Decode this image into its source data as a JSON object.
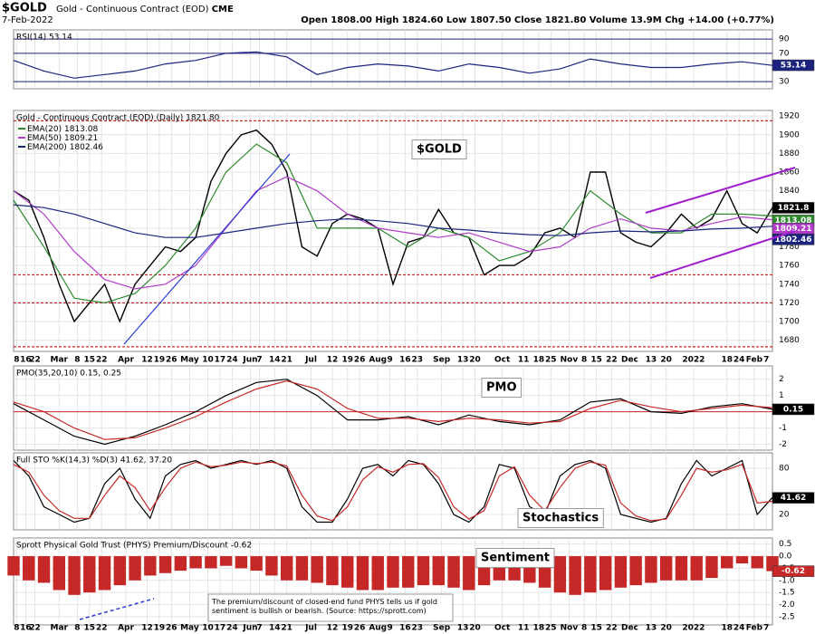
{
  "header": {
    "symbol": "$GOLD",
    "name": "Gold - Continuous Contract (EOD)",
    "exchange": "CME",
    "date": "7-Feb-2022",
    "quote": "Open 1808.00 High 1824.60 Low 1807.50 Close 1821.80 Volume 13.9M Chg +14.00 (+0.77%)"
  },
  "chart_data": [
    {
      "type": "line",
      "title": "RSI(14) 53.14",
      "ylim": [
        20,
        103
      ],
      "yticks": [
        30,
        70,
        90
      ],
      "series": [
        {
          "color": "#1a237e",
          "last": 53.14,
          "x": [
            0,
            10,
            20,
            30,
            40,
            50,
            60,
            70,
            80,
            90,
            100,
            110,
            120,
            130,
            140,
            150,
            160,
            170,
            180,
            190,
            200,
            210,
            220,
            230,
            240,
            250
          ],
          "values": [
            60,
            45,
            35,
            40,
            45,
            55,
            60,
            70,
            72,
            65,
            40,
            50,
            55,
            52,
            45,
            55,
            50,
            42,
            48,
            62,
            55,
            50,
            50,
            55,
            58,
            53
          ]
        }
      ]
    },
    {
      "type": "line",
      "title": "Gold - Continuous Contract (EOD) (Daily) 1821.80",
      "annotation": "$GOLD",
      "xlim": [
        0,
        250
      ],
      "xticks": [
        {
          "value": 1,
          "label": "8"
        },
        {
          "value": 4,
          "label": "16"
        },
        {
          "value": 7,
          "label": "22"
        },
        {
          "value": 15,
          "label": "Mar"
        },
        {
          "value": 21,
          "label": "8"
        },
        {
          "value": 25,
          "label": "15"
        },
        {
          "value": 29,
          "label": "22"
        },
        {
          "value": 37,
          "label": "Apr"
        },
        {
          "value": 44,
          "label": "12"
        },
        {
          "value": 48,
          "label": "19"
        },
        {
          "value": 52,
          "label": "26"
        },
        {
          "value": 58,
          "label": "May"
        },
        {
          "value": 64,
          "label": "10"
        },
        {
          "value": 68,
          "label": "17"
        },
        {
          "value": 72,
          "label": "24"
        },
        {
          "value": 78,
          "label": "Jun"
        },
        {
          "value": 81,
          "label": "7"
        },
        {
          "value": 86,
          "label": "14"
        },
        {
          "value": 90,
          "label": "21"
        },
        {
          "value": 98,
          "label": "Jul"
        },
        {
          "value": 105,
          "label": "12"
        },
        {
          "value": 110,
          "label": "19"
        },
        {
          "value": 114,
          "label": "26"
        },
        {
          "value": 120,
          "label": "Aug"
        },
        {
          "value": 124,
          "label": "9"
        },
        {
          "value": 129,
          "label": "16"
        },
        {
          "value": 133,
          "label": "23"
        },
        {
          "value": 141,
          "label": "Sep"
        },
        {
          "value": 148,
          "label": "13"
        },
        {
          "value": 152,
          "label": "20"
        },
        {
          "value": 161,
          "label": "Oct"
        },
        {
          "value": 168,
          "label": "11"
        },
        {
          "value": 173,
          "label": "18"
        },
        {
          "value": 177,
          "label": "25"
        },
        {
          "value": 183,
          "label": "Nov"
        },
        {
          "value": 188,
          "label": "8"
        },
        {
          "value": 192,
          "label": "15"
        },
        {
          "value": 197,
          "label": "22"
        },
        {
          "value": 203,
          "label": "Dec"
        },
        {
          "value": 210,
          "label": "13"
        },
        {
          "value": 215,
          "label": "20"
        },
        {
          "value": 224,
          "label": "2022"
        },
        {
          "value": 235,
          "label": "18"
        },
        {
          "value": 239,
          "label": "24"
        },
        {
          "value": 244,
          "label": "Feb"
        },
        {
          "value": 248,
          "label": "7"
        }
      ],
      "ylim": [
        1668,
        1926
      ],
      "yticks": [
        1680,
        1700,
        1720,
        1740,
        1760,
        1780,
        1800,
        1820,
        1840,
        1860,
        1880,
        1900,
        1920
      ],
      "reference_lines": [
        1915,
        1750,
        1720,
        1673
      ],
      "series": [
        {
          "color": "#000000",
          "last": 1821.8,
          "x": [
            0,
            5,
            10,
            15,
            20,
            25,
            30,
            35,
            40,
            45,
            50,
            55,
            60,
            65,
            70,
            75,
            80,
            85,
            90,
            95,
            100,
            105,
            110,
            115,
            120,
            125,
            130,
            135,
            140,
            145,
            150,
            155,
            160,
            165,
            170,
            175,
            180,
            185,
            190,
            195,
            200,
            205,
            210,
            215,
            220,
            225,
            230,
            235,
            240,
            245,
            250
          ],
          "values": [
            1840,
            1830,
            1790,
            1740,
            1700,
            1720,
            1740,
            1700,
            1740,
            1760,
            1780,
            1775,
            1790,
            1850,
            1880,
            1900,
            1905,
            1890,
            1860,
            1780,
            1770,
            1805,
            1815,
            1810,
            1800,
            1740,
            1785,
            1790,
            1820,
            1795,
            1790,
            1750,
            1760,
            1760,
            1770,
            1795,
            1800,
            1790,
            1860,
            1860,
            1795,
            1785,
            1780,
            1795,
            1815,
            1800,
            1810,
            1840,
            1805,
            1795,
            1822
          ]
        },
        {
          "name": "EMA(20)",
          "color": "#2e8b2e",
          "last": 1813.08,
          "x": [
            0,
            10,
            20,
            30,
            40,
            50,
            60,
            70,
            80,
            90,
            100,
            110,
            120,
            130,
            140,
            150,
            160,
            170,
            180,
            190,
            200,
            210,
            220,
            230,
            240,
            250
          ],
          "values": [
            1830,
            1780,
            1725,
            1720,
            1730,
            1760,
            1800,
            1860,
            1890,
            1870,
            1800,
            1800,
            1800,
            1780,
            1800,
            1790,
            1765,
            1775,
            1795,
            1840,
            1815,
            1795,
            1795,
            1815,
            1815,
            1813
          ]
        },
        {
          "name": "EMA(50)",
          "color": "#b03cc8",
          "last": 1809.21,
          "x": [
            0,
            10,
            20,
            30,
            40,
            50,
            60,
            70,
            80,
            90,
            100,
            110,
            120,
            130,
            140,
            150,
            160,
            170,
            180,
            190,
            200,
            210,
            220,
            230,
            240,
            250
          ],
          "values": [
            1840,
            1815,
            1775,
            1745,
            1735,
            1740,
            1760,
            1800,
            1840,
            1855,
            1840,
            1815,
            1800,
            1795,
            1790,
            1795,
            1785,
            1775,
            1780,
            1800,
            1810,
            1800,
            1797,
            1805,
            1812,
            1809
          ]
        },
        {
          "name": "EMA(200)",
          "color": "#1a237e",
          "last": 1802.46,
          "x": [
            0,
            10,
            20,
            30,
            40,
            50,
            60,
            70,
            80,
            90,
            100,
            110,
            120,
            130,
            140,
            150,
            160,
            170,
            180,
            190,
            200,
            210,
            220,
            230,
            240,
            250
          ],
          "values": [
            1825,
            1822,
            1815,
            1805,
            1795,
            1790,
            1790,
            1795,
            1800,
            1805,
            1808,
            1810,
            1808,
            1805,
            1800,
            1798,
            1795,
            1793,
            1792,
            1795,
            1797,
            1796,
            1797,
            1799,
            1800,
            1802
          ]
        }
      ]
    },
    {
      "type": "line",
      "title": "PMO(35,20,10) 0.15, 0.25",
      "annotation": "PMO",
      "ylim": [
        -2.36,
        2.82
      ],
      "yticks": [
        -2,
        -1,
        0,
        1,
        2
      ],
      "series": [
        {
          "color": "#000000",
          "last": 0.15,
          "x": [
            0,
            10,
            20,
            30,
            40,
            50,
            60,
            70,
            80,
            90,
            100,
            110,
            120,
            130,
            140,
            150,
            160,
            170,
            180,
            190,
            200,
            210,
            220,
            230,
            240,
            250
          ],
          "values": [
            0.5,
            -0.5,
            -1.5,
            -2.0,
            -1.5,
            -0.8,
            0,
            1.0,
            1.8,
            2.0,
            1.0,
            -0.5,
            -0.5,
            -0.3,
            -0.8,
            -0.2,
            -0.6,
            -0.8,
            -0.5,
            0.6,
            0.8,
            0,
            -0.1,
            0.3,
            0.5,
            0.15
          ]
        },
        {
          "color": "#c62828",
          "x": [
            0,
            10,
            20,
            30,
            40,
            50,
            60,
            70,
            80,
            90,
            100,
            110,
            120,
            130,
            140,
            150,
            160,
            170,
            180,
            190,
            200,
            210,
            220,
            230,
            240,
            250
          ],
          "values": [
            0.6,
            0,
            -1.0,
            -1.7,
            -1.6,
            -1.0,
            -0.3,
            0.6,
            1.4,
            1.9,
            1.4,
            0.2,
            -0.4,
            -0.4,
            -0.6,
            -0.4,
            -0.5,
            -0.7,
            -0.6,
            0.2,
            0.7,
            0.3,
            0.0,
            0.2,
            0.4,
            0.25
          ]
        }
      ]
    },
    {
      "type": "line",
      "title": "Full STO %K(14,3) %D(3) 41.62, 37.20",
      "annotation": "Stochastics",
      "ylim": [
        0,
        100
      ],
      "yticks": [
        20,
        80
      ],
      "series": [
        {
          "color": "#000000",
          "last": 41.62,
          "x": [
            0,
            5,
            10,
            15,
            20,
            25,
            30,
            35,
            40,
            45,
            50,
            55,
            60,
            65,
            70,
            75,
            80,
            85,
            90,
            95,
            100,
            105,
            110,
            115,
            120,
            125,
            130,
            135,
            140,
            145,
            150,
            155,
            160,
            165,
            170,
            175,
            180,
            185,
            190,
            195,
            200,
            205,
            210,
            215,
            220,
            225,
            230,
            235,
            240,
            245,
            250
          ],
          "values": [
            90,
            70,
            30,
            20,
            10,
            15,
            60,
            80,
            40,
            15,
            70,
            85,
            90,
            80,
            85,
            90,
            85,
            90,
            80,
            30,
            10,
            10,
            40,
            80,
            85,
            70,
            90,
            85,
            60,
            20,
            10,
            30,
            85,
            80,
            30,
            20,
            70,
            85,
            90,
            80,
            20,
            15,
            10,
            15,
            60,
            90,
            70,
            80,
            90,
            20,
            42
          ]
        },
        {
          "color": "#c62828",
          "x": [
            0,
            5,
            10,
            15,
            20,
            25,
            30,
            35,
            40,
            45,
            50,
            55,
            60,
            65,
            70,
            75,
            80,
            85,
            90,
            95,
            100,
            105,
            110,
            115,
            120,
            125,
            130,
            135,
            140,
            145,
            150,
            155,
            160,
            165,
            170,
            175,
            180,
            185,
            190,
            195,
            200,
            205,
            210,
            215,
            220,
            225,
            230,
            235,
            240,
            245,
            250
          ],
          "values": [
            85,
            75,
            45,
            25,
            15,
            15,
            45,
            70,
            55,
            25,
            55,
            80,
            88,
            82,
            84,
            88,
            86,
            88,
            83,
            45,
            18,
            12,
            30,
            65,
            82,
            75,
            85,
            86,
            68,
            30,
            14,
            25,
            70,
            82,
            45,
            25,
            55,
            80,
            88,
            84,
            35,
            18,
            12,
            14,
            45,
            80,
            75,
            78,
            85,
            35,
            37
          ]
        }
      ]
    },
    {
      "type": "bar",
      "title": "Sprott Physical Gold Trust (PHYS) Premium/Discount -0.62",
      "annotation": "Sentiment",
      "note": "The premium/discount of closed-end fund PHYS tells us if gold sentiment is bullish or bearish. (Source: https://sprott.com)",
      "ylim": [
        -2.84,
        0.75
      ],
      "yticks": [
        0.5,
        {
          "value": 0,
          "label": "0.0"
        },
        -0.5,
        {
          "value": -1,
          "label": "-1.0"
        },
        -1.5,
        {
          "value": -2,
          "label": "-2.0"
        },
        -2.5
      ],
      "series": [
        {
          "color": "#c62828",
          "last": -0.62,
          "x": [
            0,
            5,
            10,
            15,
            20,
            25,
            30,
            35,
            40,
            45,
            50,
            55,
            60,
            65,
            70,
            75,
            80,
            85,
            90,
            95,
            100,
            105,
            110,
            115,
            120,
            125,
            130,
            135,
            140,
            145,
            150,
            155,
            160,
            165,
            170,
            175,
            180,
            185,
            190,
            195,
            200,
            205,
            210,
            215,
            220,
            225,
            230,
            235,
            240,
            245,
            250
          ],
          "values": [
            -0.8,
            -1.0,
            -1.1,
            -1.4,
            -1.6,
            -1.5,
            -1.4,
            -1.2,
            -1.0,
            -0.8,
            -0.7,
            -0.6,
            -0.5,
            -0.5,
            -0.4,
            -0.5,
            -0.6,
            -0.8,
            -1.0,
            -1.0,
            -1.1,
            -1.2,
            -1.3,
            -1.4,
            -1.4,
            -1.3,
            -1.3,
            -1.2,
            -1.2,
            -1.3,
            -1.4,
            -1.2,
            -1.0,
            -1.0,
            -1.1,
            -1.3,
            -1.5,
            -1.6,
            -1.5,
            -1.4,
            -1.3,
            -1.2,
            -1.1,
            -1.0,
            -1.0,
            -1.0,
            -0.9,
            -0.5,
            -0.3,
            -0.5,
            -0.62
          ]
        }
      ]
    }
  ]
}
